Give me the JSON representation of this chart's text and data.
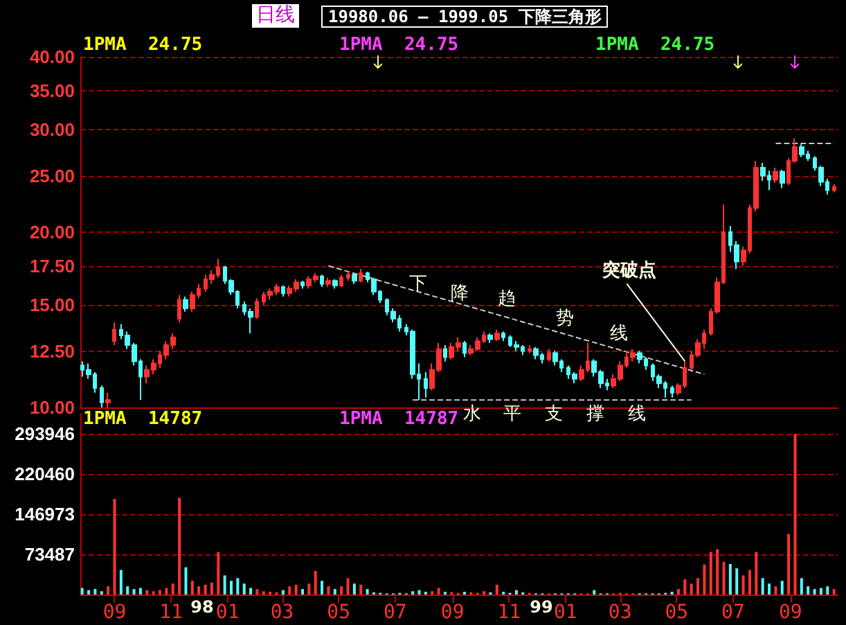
{
  "chart_data": [
    {
      "type": "candlestick",
      "title": "19980.06 — 1999.05 下降三角形",
      "subtitle": "日线",
      "x": [
        "1997-07-28",
        "1997-08-04",
        "1997-08-11",
        "1997-08-18",
        "1997-08-25",
        "1997-09-01",
        "1997-09-08",
        "1997-09-15",
        "1997-09-22",
        "1997-09-29",
        "1997-10-06",
        "1997-10-13",
        "1997-10-20",
        "1997-10-27",
        "1997-11-03",
        "1997-11-10",
        "1997-11-17",
        "1997-11-24",
        "1997-12-01",
        "1997-12-08",
        "1997-12-15",
        "1997-12-22",
        "1997-12-29",
        "1998-01-05",
        "1998-01-12",
        "1998-01-19",
        "1998-01-26",
        "1998-02-02",
        "1998-02-09",
        "1998-02-16",
        "1998-02-23",
        "1998-03-02",
        "1998-03-09",
        "1998-03-16",
        "1998-03-23",
        "1998-03-30",
        "1998-04-06",
        "1998-04-13",
        "1998-04-20",
        "1998-04-27",
        "1998-05-04",
        "1998-05-11",
        "1998-05-18",
        "1998-05-25",
        "1998-06-01",
        "1998-06-08",
        "1998-06-15",
        "1998-06-22",
        "1998-06-29",
        "1998-07-06",
        "1998-07-13",
        "1998-07-20",
        "1998-07-27",
        "1998-08-03",
        "1998-08-10",
        "1998-08-17",
        "1998-08-24",
        "1998-08-31",
        "1998-09-07",
        "1998-09-14",
        "1998-09-21",
        "1998-09-28",
        "1998-10-05",
        "1998-10-12",
        "1998-10-19",
        "1998-10-26",
        "1998-11-02",
        "1998-11-09",
        "1998-11-16",
        "1998-11-23",
        "1998-11-30",
        "1998-12-07",
        "1998-12-14",
        "1998-12-21",
        "1998-12-28",
        "1999-01-04",
        "1999-01-11",
        "1999-01-18",
        "1999-01-25",
        "1999-02-01",
        "1999-02-08",
        "1999-02-15",
        "1999-02-22",
        "1999-03-01",
        "1999-03-08",
        "1999-03-15",
        "1999-03-22",
        "1999-03-29",
        "1999-04-05",
        "1999-04-12",
        "1999-04-19",
        "1999-04-26",
        "1999-05-03",
        "1999-05-10",
        "1999-05-17",
        "1999-05-24",
        "1999-05-31",
        "1999-06-07",
        "1999-06-14",
        "1999-06-21",
        "1999-06-28",
        "1999-07-05",
        "1999-07-12",
        "1999-07-19",
        "1999-07-26",
        "1999-08-02",
        "1999-08-09",
        "1999-08-16",
        "1999-08-23",
        "1999-08-30",
        "1999-09-06",
        "1999-09-13",
        "1999-09-20",
        "1999-09-27",
        "1999-10-04",
        "1999-10-11",
        "1999-10-18"
      ],
      "ohlc": [
        [
          11.8,
          12.0,
          11.3,
          11.6
        ],
        [
          11.6,
          11.9,
          11.2,
          11.4
        ],
        [
          11.4,
          11.5,
          10.6,
          10.8
        ],
        [
          10.8,
          10.9,
          10.0,
          10.2
        ],
        [
          10.2,
          10.6,
          10.0,
          10.3
        ],
        [
          13.0,
          14.0,
          12.8,
          13.6
        ],
        [
          13.6,
          13.9,
          13.1,
          13.3
        ],
        [
          13.3,
          13.5,
          12.6,
          12.8
        ],
        [
          12.8,
          12.9,
          11.8,
          12.0
        ],
        [
          12.0,
          12.1,
          10.3,
          11.3
        ],
        [
          11.3,
          11.8,
          11.0,
          11.6
        ],
        [
          11.6,
          12.1,
          11.4,
          11.9
        ],
        [
          11.9,
          12.5,
          11.7,
          12.3
        ],
        [
          12.3,
          13.0,
          12.1,
          12.8
        ],
        [
          12.8,
          13.4,
          12.6,
          13.2
        ],
        [
          14.2,
          15.6,
          14.0,
          15.3
        ],
        [
          15.3,
          15.5,
          14.6,
          14.8
        ],
        [
          14.8,
          15.8,
          14.6,
          15.6
        ],
        [
          15.6,
          16.3,
          15.4,
          16.0
        ],
        [
          16.0,
          16.9,
          15.8,
          16.6
        ],
        [
          16.6,
          17.2,
          16.3,
          16.9
        ],
        [
          16.9,
          18.0,
          16.7,
          17.4
        ],
        [
          17.4,
          17.5,
          16.3,
          16.5
        ],
        [
          16.5,
          16.6,
          15.6,
          15.8
        ],
        [
          15.8,
          15.9,
          14.8,
          15.0
        ],
        [
          15.0,
          15.2,
          14.4,
          14.6
        ],
        [
          14.6,
          14.8,
          13.4,
          14.3
        ],
        [
          14.3,
          15.4,
          14.2,
          15.2
        ],
        [
          15.2,
          15.8,
          15.0,
          15.6
        ],
        [
          15.6,
          16.0,
          15.3,
          15.8
        ],
        [
          15.8,
          16.3,
          15.6,
          16.1
        ],
        [
          16.1,
          16.2,
          15.5,
          15.7
        ],
        [
          15.7,
          16.2,
          15.5,
          16.0
        ],
        [
          16.0,
          16.6,
          15.8,
          16.4
        ],
        [
          16.4,
          16.5,
          16.0,
          16.2
        ],
        [
          16.2,
          16.8,
          16.0,
          16.6
        ],
        [
          16.6,
          17.0,
          16.4,
          16.8
        ],
        [
          16.8,
          16.9,
          16.1,
          16.3
        ],
        [
          16.3,
          16.7,
          16.1,
          16.5
        ],
        [
          16.5,
          16.6,
          16.0,
          16.2
        ],
        [
          16.2,
          16.9,
          16.1,
          16.7
        ],
        [
          16.7,
          17.1,
          16.5,
          16.9
        ],
        [
          16.9,
          17.0,
          16.3,
          16.5
        ],
        [
          16.5,
          17.3,
          16.4,
          17.0
        ],
        [
          17.0,
          17.1,
          16.4,
          16.6
        ],
        [
          16.6,
          16.7,
          15.6,
          15.8
        ],
        [
          15.8,
          15.9,
          15.1,
          15.3
        ],
        [
          15.3,
          15.4,
          14.4,
          14.6
        ],
        [
          14.6,
          14.8,
          14.0,
          14.2
        ],
        [
          14.2,
          14.4,
          13.5,
          13.7
        ],
        [
          13.7,
          13.9,
          13.3,
          13.5
        ],
        [
          13.5,
          13.6,
          11.2,
          11.4
        ],
        [
          11.4,
          11.9,
          10.3,
          11.2
        ],
        [
          11.2,
          11.5,
          10.4,
          10.8
        ],
        [
          10.8,
          11.9,
          10.7,
          11.6
        ],
        [
          11.6,
          12.9,
          11.5,
          12.6
        ],
        [
          12.6,
          12.8,
          12.0,
          12.2
        ],
        [
          12.2,
          12.9,
          12.1,
          12.7
        ],
        [
          12.7,
          13.2,
          12.5,
          12.9
        ],
        [
          12.9,
          13.0,
          12.2,
          12.4
        ],
        [
          12.4,
          12.8,
          12.3,
          12.6
        ],
        [
          12.6,
          13.2,
          12.5,
          13.0
        ],
        [
          13.0,
          13.5,
          12.9,
          13.3
        ],
        [
          13.3,
          13.4,
          12.9,
          13.1
        ],
        [
          13.1,
          13.6,
          13.0,
          13.4
        ],
        [
          13.4,
          13.5,
          13.0,
          13.2
        ],
        [
          13.2,
          13.3,
          12.7,
          12.8
        ],
        [
          12.8,
          13.0,
          12.5,
          12.7
        ],
        [
          12.7,
          12.8,
          12.3,
          12.5
        ],
        [
          12.5,
          12.8,
          12.4,
          12.6
        ],
        [
          12.6,
          12.7,
          12.1,
          12.3
        ],
        [
          12.3,
          12.4,
          11.9,
          12.1
        ],
        [
          12.1,
          12.6,
          12.0,
          12.4
        ],
        [
          12.4,
          12.5,
          11.8,
          12.0
        ],
        [
          12.0,
          12.1,
          11.5,
          11.7
        ],
        [
          11.7,
          11.8,
          11.2,
          11.4
        ],
        [
          11.4,
          11.5,
          11.0,
          11.2
        ],
        [
          11.2,
          11.8,
          11.1,
          11.6
        ],
        [
          11.6,
          12.9,
          11.5,
          12.0
        ],
        [
          12.0,
          12.1,
          11.3,
          11.5
        ],
        [
          11.5,
          11.6,
          10.8,
          11.0
        ],
        [
          11.0,
          11.2,
          10.7,
          10.9
        ],
        [
          10.9,
          11.4,
          10.8,
          11.2
        ],
        [
          11.2,
          12.0,
          11.1,
          11.8
        ],
        [
          11.8,
          12.5,
          11.7,
          12.2
        ],
        [
          12.2,
          12.6,
          12.0,
          12.4
        ],
        [
          12.4,
          12.5,
          11.9,
          12.1
        ],
        [
          12.1,
          12.2,
          11.6,
          11.8
        ],
        [
          11.8,
          11.9,
          11.1,
          11.3
        ],
        [
          11.3,
          11.4,
          10.8,
          11.0
        ],
        [
          11.0,
          11.1,
          10.4,
          10.8
        ],
        [
          10.8,
          10.9,
          10.4,
          10.6
        ],
        [
          10.6,
          11.0,
          10.5,
          10.9
        ],
        [
          10.9,
          12.0,
          10.8,
          11.7
        ],
        [
          11.7,
          12.5,
          11.6,
          12.3
        ],
        [
          12.3,
          13.1,
          12.2,
          12.9
        ],
        [
          12.9,
          13.6,
          12.6,
          13.4
        ],
        [
          13.4,
          14.8,
          13.3,
          14.6
        ],
        [
          14.6,
          16.7,
          14.5,
          16.4
        ],
        [
          16.4,
          22.3,
          16.3,
          20.0
        ],
        [
          20.0,
          20.5,
          18.5,
          19.0
        ],
        [
          19.0,
          19.3,
          17.3,
          17.8
        ],
        [
          17.8,
          18.9,
          17.5,
          18.6
        ],
        [
          18.6,
          22.3,
          18.4,
          22.0
        ],
        [
          22.0,
          26.5,
          21.7,
          25.8
        ],
        [
          25.8,
          26.3,
          24.5,
          25.0
        ],
        [
          25.0,
          25.5,
          23.6,
          24.6
        ],
        [
          24.6,
          25.8,
          24.3,
          25.4
        ],
        [
          25.4,
          25.6,
          23.8,
          24.3
        ],
        [
          24.3,
          26.8,
          24.1,
          26.5
        ],
        [
          26.5,
          29.0,
          26.3,
          28.0
        ],
        [
          28.0,
          28.3,
          26.9,
          27.2
        ],
        [
          27.2,
          27.6,
          26.5,
          26.8
        ],
        [
          26.8,
          27.0,
          25.5,
          25.8
        ],
        [
          25.8,
          26.0,
          24.0,
          24.4
        ],
        [
          24.4,
          24.7,
          23.2,
          23.6
        ],
        [
          23.6,
          24.2,
          23.4,
          23.9
        ]
      ],
      "colors": [
        "#54fcfc",
        "#54fcfc",
        "#54fcfc",
        "#54fcfc",
        "#ff3232",
        "#ff3232",
        "#54fcfc",
        "#54fcfc",
        "#54fcfc",
        "#54fcfc",
        "#ff3232",
        "#ff3232",
        "#ff3232",
        "#ff3232",
        "#ff3232",
        "#ff3232",
        "#54fcfc",
        "#ff3232",
        "#ff3232",
        "#ff3232",
        "#ff3232",
        "#ff3232",
        "#54fcfc",
        "#54fcfc",
        "#54fcfc",
        "#54fcfc",
        "#54fcfc",
        "#ff3232",
        "#ff3232",
        "#ff3232",
        "#ff3232",
        "#54fcfc",
        "#ff3232",
        "#ff3232",
        "#54fcfc",
        "#ff3232",
        "#ff3232",
        "#54fcfc",
        "#ff3232",
        "#54fcfc",
        "#ff3232",
        "#ff3232",
        "#54fcfc",
        "#ff3232",
        "#54fcfc",
        "#54fcfc",
        "#54fcfc",
        "#54fcfc",
        "#54fcfc",
        "#54fcfc",
        "#54fcfc",
        "#54fcfc",
        "#54fcfc",
        "#54fcfc",
        "#ff3232",
        "#ff3232",
        "#54fcfc",
        "#ff3232",
        "#ff3232",
        "#54fcfc",
        "#ff3232",
        "#ff3232",
        "#ff3232",
        "#54fcfc",
        "#ff3232",
        "#54fcfc",
        "#54fcfc",
        "#54fcfc",
        "#54fcfc",
        "#ff3232",
        "#54fcfc",
        "#54fcfc",
        "#ff3232",
        "#54fcfc",
        "#54fcfc",
        "#54fcfc",
        "#54fcfc",
        "#ff3232",
        "#ff3232",
        "#54fcfc",
        "#54fcfc",
        "#54fcfc",
        "#ff3232",
        "#ff3232",
        "#ff3232",
        "#ff3232",
        "#54fcfc",
        "#54fcfc",
        "#54fcfc",
        "#54fcfc",
        "#54fcfc",
        "#54fcfc",
        "#ff3232",
        "#ff3232",
        "#ff3232",
        "#ff3232",
        "#ff3232",
        "#ff3232",
        "#ff3232",
        "#ff3232",
        "#54fcfc",
        "#54fcfc",
        "#ff3232",
        "#ff3232",
        "#ff3232",
        "#54fcfc",
        "#54fcfc",
        "#ff3232",
        "#54fcfc",
        "#ff3232",
        "#ff3232",
        "#54fcfc",
        "#54fcfc",
        "#54fcfc",
        "#54fcfc",
        "#54fcfc",
        "#ff3232"
      ],
      "series": [
        {
          "type": "line",
          "x": [
            "1998-04-20",
            "1999-05-31"
          ],
          "values": [
            17.5,
            11.4
          ],
          "color": "#c8c8c8",
          "line_style": "dashed"
        },
        {
          "type": "line",
          "x": [
            "1998-07-20",
            "1999-05-17"
          ],
          "values": [
            10.3,
            10.3
          ],
          "color": "#c8c8c8",
          "line_style": "dashed"
        },
        {
          "type": "line",
          "x": [
            "1999-08-16",
            "1999-10-18"
          ],
          "values": [
            28.4,
            28.4
          ],
          "color": "#c8c8c8",
          "line_style": "dashed"
        }
      ],
      "marker": "none",
      "xlim": [
        "1997-07-26",
        "1999-10-22"
      ],
      "ylim": [
        10,
        40
      ],
      "yticks": [
        {
          "value": 10,
          "label": "10.00"
        },
        {
          "value": 12.5,
          "label": "12.50"
        },
        {
          "value": 15,
          "label": "15.00"
        },
        {
          "value": 17.5,
          "label": "17.50"
        },
        {
          "value": 20,
          "label": "20.00"
        },
        {
          "value": 25,
          "label": "25.00"
        },
        {
          "value": 30,
          "label": "30.00"
        },
        {
          "value": 35,
          "label": "35.00"
        },
        {
          "value": 40,
          "label": "40.00"
        }
      ],
      "log": true,
      "grid": "y",
      "tick_labels": "y",
      "annotations": [
        "1PMA  24.75",
        "1PMA  24.75",
        "1PMA  24.75",
        "下",
        "降",
        "趋",
        "势",
        "线",
        "水",
        "平",
        "支",
        "撑",
        "线",
        {
          "text": "突破点",
          "x": "1999-05-10",
          "y": 12.0
        }
      ]
    },
    {
      "type": "bar",
      "x": [
        "1997-07-28",
        "1997-08-04",
        "1997-08-11",
        "1997-08-18",
        "1997-08-25",
        "1997-09-01",
        "1997-09-08",
        "1997-09-15",
        "1997-09-22",
        "1997-09-29",
        "1997-10-06",
        "1997-10-13",
        "1997-10-20",
        "1997-10-27",
        "1997-11-03",
        "1997-11-10",
        "1997-11-17",
        "1997-11-24",
        "1997-12-01",
        "1997-12-08",
        "1997-12-15",
        "1997-12-22",
        "1997-12-29",
        "1998-01-05",
        "1998-01-12",
        "1998-01-19",
        "1998-01-26",
        "1998-02-02",
        "1998-02-09",
        "1998-02-16",
        "1998-02-23",
        "1998-03-02",
        "1998-03-09",
        "1998-03-16",
        "1998-03-23",
        "1998-03-30",
        "1998-04-06",
        "1998-04-13",
        "1998-04-20",
        "1998-04-27",
        "1998-05-04",
        "1998-05-11",
        "1998-05-18",
        "1998-05-25",
        "1998-06-01",
        "1998-06-08",
        "1998-06-15",
        "1998-06-22",
        "1998-06-29",
        "1998-07-06",
        "1998-07-13",
        "1998-07-20",
        "1998-07-27",
        "1998-08-03",
        "1998-08-10",
        "1998-08-17",
        "1998-08-24",
        "1998-08-31",
        "1998-09-07",
        "1998-09-14",
        "1998-09-21",
        "1998-09-28",
        "1998-10-05",
        "1998-10-12",
        "1998-10-19",
        "1998-10-26",
        "1998-11-02",
        "1998-11-09",
        "1998-11-16",
        "1998-11-23",
        "1998-11-30",
        "1998-12-07",
        "1998-12-14",
        "1998-12-21",
        "1998-12-28",
        "1999-01-04",
        "1999-01-11",
        "1999-01-18",
        "1999-01-25",
        "1999-02-01",
        "1999-02-08",
        "1999-02-15",
        "1999-02-22",
        "1999-03-01",
        "1999-03-08",
        "1999-03-15",
        "1999-03-22",
        "1999-03-29",
        "1999-04-05",
        "1999-04-12",
        "1999-04-19",
        "1999-04-26",
        "1999-05-03",
        "1999-05-10",
        "1999-05-17",
        "1999-05-24",
        "1999-05-31",
        "1999-06-07",
        "1999-06-14",
        "1999-06-21",
        "1999-06-28",
        "1999-07-05",
        "1999-07-12",
        "1999-07-19",
        "1999-07-26",
        "1999-08-02",
        "1999-08-09",
        "1999-08-16",
        "1999-08-23",
        "1999-08-30",
        "1999-09-06",
        "1999-09-13",
        "1999-09-20",
        "1999-09-27",
        "1999-10-04",
        "1999-10-11",
        "1999-10-18"
      ],
      "values": [
        12000,
        8000,
        10000,
        6000,
        15000,
        175000,
        45000,
        15000,
        10000,
        12000,
        8000,
        6000,
        8000,
        12000,
        20000,
        177000,
        50000,
        25000,
        15000,
        18000,
        22000,
        78000,
        35000,
        25000,
        30000,
        20000,
        12000,
        10000,
        6000,
        5000,
        4000,
        8000,
        15000,
        18000,
        10000,
        20000,
        43000,
        25000,
        15000,
        10000,
        15000,
        30000,
        20000,
        18000,
        10000,
        4000,
        3000,
        2000,
        2000,
        3000,
        2000,
        6000,
        8000,
        5000,
        6000,
        12000,
        5000,
        4000,
        3000,
        5000,
        4000,
        3000,
        6000,
        4000,
        18000,
        5000,
        3000,
        8000,
        4000,
        3000,
        2000,
        2000,
        2000,
        2000,
        2000,
        2000,
        2000,
        2000,
        2000,
        8000,
        2000,
        2000,
        2000,
        3000,
        2000,
        2000,
        2000,
        2000,
        2000,
        2000,
        3000,
        5000,
        10000,
        28000,
        20000,
        30000,
        55000,
        78000,
        83000,
        60000,
        56000,
        48000,
        35000,
        45000,
        78000,
        30000,
        20000,
        15000,
        25000,
        111000,
        294000,
        30000,
        15000,
        10000,
        12000,
        15000,
        10000
      ],
      "colors": [
        "#54fcfc",
        "#54fcfc",
        "#54fcfc",
        "#54fcfc",
        "#ff3232",
        "#ff3232",
        "#54fcfc",
        "#54fcfc",
        "#54fcfc",
        "#54fcfc",
        "#ff3232",
        "#ff3232",
        "#ff3232",
        "#ff3232",
        "#ff3232",
        "#ff3232",
        "#54fcfc",
        "#ff3232",
        "#ff3232",
        "#ff3232",
        "#ff3232",
        "#ff3232",
        "#54fcfc",
        "#54fcfc",
        "#54fcfc",
        "#54fcfc",
        "#54fcfc",
        "#ff3232",
        "#ff3232",
        "#ff3232",
        "#ff3232",
        "#54fcfc",
        "#ff3232",
        "#ff3232",
        "#54fcfc",
        "#ff3232",
        "#ff3232",
        "#54fcfc",
        "#ff3232",
        "#54fcfc",
        "#ff3232",
        "#ff3232",
        "#54fcfc",
        "#ff3232",
        "#54fcfc",
        "#54fcfc",
        "#54fcfc",
        "#54fcfc",
        "#54fcfc",
        "#54fcfc",
        "#54fcfc",
        "#54fcfc",
        "#54fcfc",
        "#54fcfc",
        "#ff3232",
        "#ff3232",
        "#54fcfc",
        "#ff3232",
        "#ff3232",
        "#54fcfc",
        "#ff3232",
        "#ff3232",
        "#ff3232",
        "#54fcfc",
        "#ff3232",
        "#54fcfc",
        "#54fcfc",
        "#54fcfc",
        "#54fcfc",
        "#ff3232",
        "#54fcfc",
        "#54fcfc",
        "#ff3232",
        "#54fcfc",
        "#54fcfc",
        "#54fcfc",
        "#54fcfc",
        "#ff3232",
        "#ff3232",
        "#54fcfc",
        "#54fcfc",
        "#54fcfc",
        "#ff3232",
        "#ff3232",
        "#ff3232",
        "#ff3232",
        "#54fcfc",
        "#54fcfc",
        "#54fcfc",
        "#54fcfc",
        "#54fcfc",
        "#54fcfc",
        "#ff3232",
        "#ff3232",
        "#ff3232",
        "#ff3232",
        "#ff3232",
        "#ff3232",
        "#ff3232",
        "#ff3232",
        "#54fcfc",
        "#54fcfc",
        "#ff3232",
        "#ff3232",
        "#ff3232",
        "#54fcfc",
        "#54fcfc",
        "#ff3232",
        "#54fcfc",
        "#ff3232",
        "#ff3232",
        "#54fcfc",
        "#54fcfc",
        "#54fcfc",
        "#54fcfc",
        "#54fcfc",
        "#ff3232"
      ],
      "xlim": [
        "1997-07-26",
        "1999-10-22"
      ],
      "xticks": [
        {
          "value": "1997-09-01",
          "label": "09"
        },
        {
          "value": "1997-11-01",
          "label": "11"
        },
        {
          "value": "1998-01-01",
          "label": "01"
        },
        {
          "value": "1998-03-01",
          "label": "03"
        },
        {
          "value": "1998-05-01",
          "label": "05"
        },
        {
          "value": "1998-07-01",
          "label": "07"
        },
        {
          "value": "1998-09-01",
          "label": "09"
        },
        {
          "value": "1998-11-01",
          "label": "11"
        },
        {
          "value": "1999-01-01",
          "label": "01"
        },
        {
          "value": "1999-03-01",
          "label": "03"
        },
        {
          "value": "1999-05-01",
          "label": "05"
        },
        {
          "value": "1999-07-01",
          "label": "07"
        },
        {
          "value": "1999-09-01",
          "label": "09"
        }
      ],
      "ylim": [
        0,
        330000
      ],
      "yticks": [
        73487,
        146973,
        220460,
        293946
      ],
      "grid": "y",
      "annotations": [
        "1PMA  14787",
        "1PMA  14787",
        "98",
        "99"
      ]
    }
  ]
}
